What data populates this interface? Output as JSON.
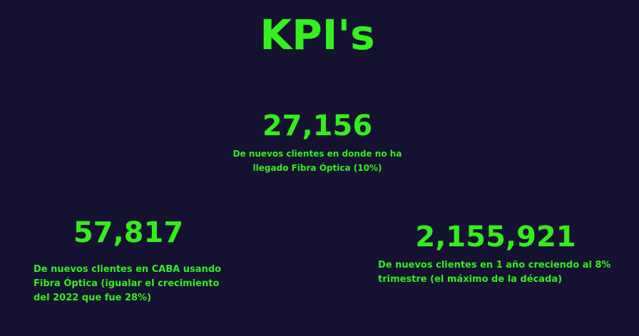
{
  "title": "KPI's",
  "kpis": [
    {
      "value": "27,156",
      "description": "De nuevos clientes en donde no ha llegado Fibra Óptica (10%)"
    },
    {
      "value": "57,817",
      "description": "De nuevos clientes en CABA usando Fibra Óptica (igualar el crecimiento del 2022 que fue 28%)"
    },
    {
      "value": "2,155,921",
      "description": "De nuevos clientes en 1 año creciendo al 8% trimestre (el máximo de la década)"
    }
  ],
  "colors": {
    "background": "#141230",
    "accent": "#33ee1d"
  }
}
